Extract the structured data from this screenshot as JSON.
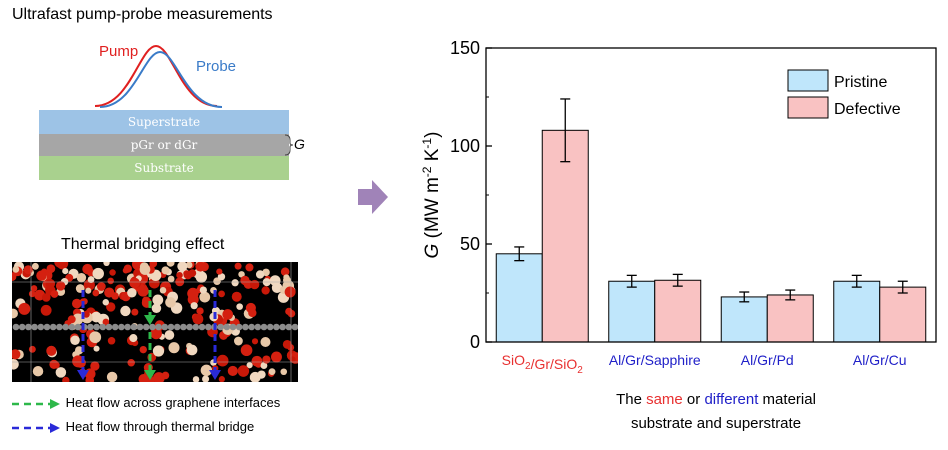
{
  "left_panel": {
    "pump_probe_title": "Ultrafast pump-probe  measurements",
    "pump_label": "Pump",
    "probe_label": "Probe",
    "layers": {
      "superstrate": "Superstrate",
      "graphene": "pGr or dGr",
      "substrate": "Substrate"
    },
    "g_symbol": "G",
    "bridging_title": "Thermal bridging effect",
    "legend": [
      {
        "text": "Heat flow across graphene interfaces",
        "color": "#2db84a"
      },
      {
        "text": "Heat flow through thermal bridge",
        "color": "#2a2ad8"
      }
    ],
    "colors": {
      "pump": "#e02020",
      "probe": "#3a7bc8",
      "superstrate": "#9dc3e6",
      "graphene": "#a6a6a6",
      "substrate": "#a9d18e",
      "arrow": "#a083b8"
    }
  },
  "chart_data": {
    "type": "bar",
    "categories": [
      "SiO2/Gr/SiO2",
      "Al/Gr/Sapphire",
      "Al/Gr/Pd",
      "Al/Gr/Cu"
    ],
    "category_colors": [
      "#e83030",
      "#2020c8",
      "#2020c8",
      "#2020c8"
    ],
    "series": [
      {
        "name": "Pristine",
        "values": [
          45,
          31,
          23,
          31
        ],
        "errors": [
          3.5,
          3,
          2.5,
          3
        ],
        "color": "#bfe6fb"
      },
      {
        "name": "Defective",
        "values": [
          108,
          31.5,
          24,
          28
        ],
        "errors": [
          16,
          3,
          2.5,
          3
        ],
        "color": "#f9c2c2"
      }
    ],
    "ylabel": "G (MW m-2 K-1)",
    "ylim": [
      0,
      150
    ],
    "yticks": [
      0,
      50,
      100,
      150
    ],
    "grid": false,
    "legend_position": "top-right",
    "annotation": {
      "line1_prefix": "The ",
      "same": "same",
      "or": " or ",
      "different": "different",
      "line1_suffix": " material",
      "line2": "substrate and superstrate",
      "same_color": "#e83030",
      "different_color": "#2020c8"
    }
  }
}
